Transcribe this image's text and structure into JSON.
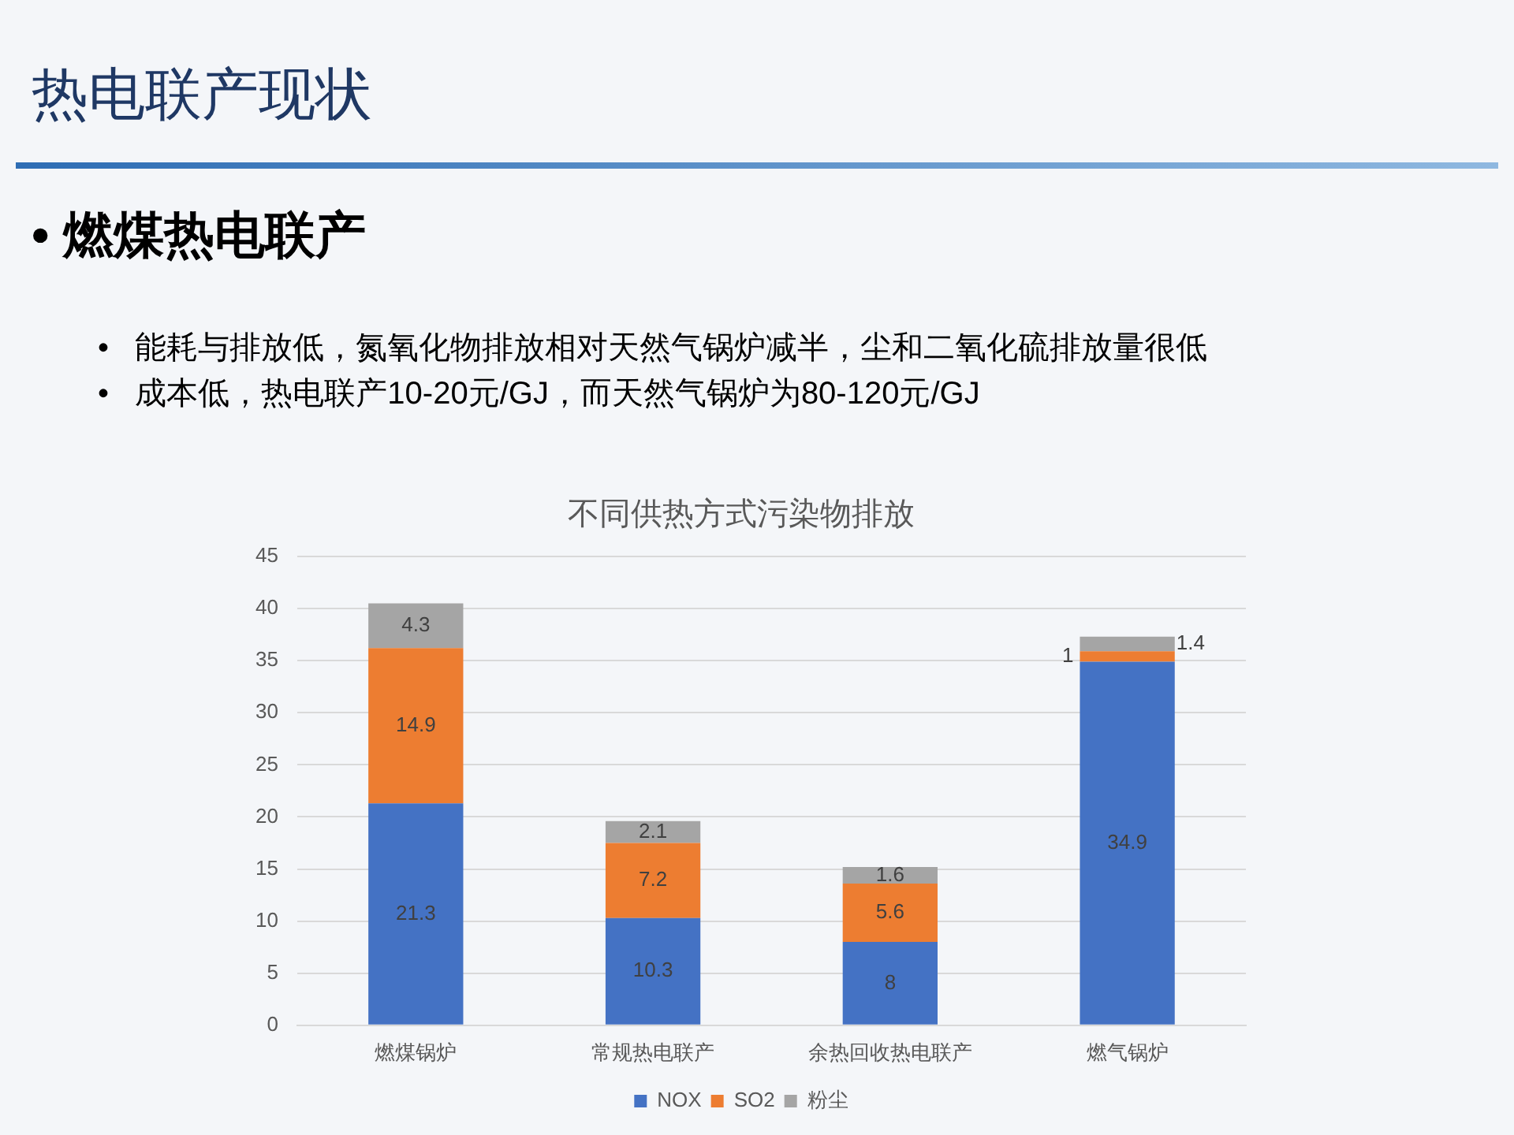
{
  "chart_data": {
    "type": "bar",
    "title": "不同供热方式污染物排放",
    "stacked": true,
    "categories": [
      "燃煤锅炉",
      "常规热电联产",
      "余热回收热电联产",
      "燃气锅炉"
    ],
    "series": [
      {
        "name": "NOX",
        "color": "#4472c4",
        "values": [
          21.3,
          10.3,
          8,
          34.9
        ]
      },
      {
        "name": "SO2",
        "color": "#ed7d31",
        "values": [
          14.9,
          7.2,
          5.6,
          1
        ]
      },
      {
        "name": "粉尘",
        "color": "#a5a5a5",
        "values": [
          4.3,
          2.1,
          1.6,
          1.4
        ]
      }
    ],
    "ylim": [
      0,
      45
    ],
    "yticks": [
      0,
      5,
      10,
      15,
      20,
      25,
      30,
      35,
      40,
      45
    ],
    "grid": "y",
    "legend": "bottom",
    "data_labels": true,
    "annotations": [
      "热电联产现状",
      "• 燃煤热电联产",
      "•   能耗与排放低，氮氧化物排放相对天然气锅炉减半，尘和二氧化硫排放量很低",
      "•   成本低，热电联产10-20元/GJ，而天然气锅炉为80-120元/GJ"
    ]
  }
}
